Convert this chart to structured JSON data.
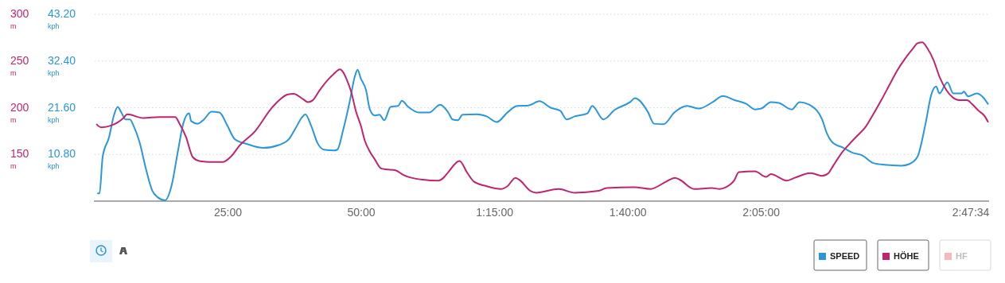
{
  "chart_data": {
    "type": "line",
    "ylabel": "kph",
    "y2label": "m",
    "xlim": [
      0,
      167.57
    ],
    "xticks": [
      {
        "value": 25,
        "label": "25:00"
      },
      {
        "value": 50,
        "label": "50:00"
      },
      {
        "value": 75,
        "label": "1:15:00"
      },
      {
        "value": 100,
        "label": "1:40:00"
      },
      {
        "value": 125,
        "label": "2:05:00"
      },
      {
        "value": 167.57,
        "label": "2:47:34"
      }
    ],
    "ylim": [
      0,
      43.2
    ],
    "yticks": [
      {
        "value": 10.8,
        "label": "10.80"
      },
      {
        "value": 21.6,
        "label": "21.60"
      },
      {
        "value": 32.4,
        "label": "32.40"
      },
      {
        "value": 43.2,
        "label": "43.20"
      }
    ],
    "y2lim": [
      100,
      300
    ],
    "y2ticks": [
      150,
      200,
      250,
      300
    ],
    "grid": "y",
    "legend": "bottom right",
    "line_style": "solid",
    "marker": "none",
    "series": [
      {
        "name": "SPEED",
        "color": "#2a96dc",
        "x": [
          0.6,
          0.9,
          1.5,
          2.7,
          3.6,
          4.3,
          5.0,
          5.8,
          6.6,
          7.3,
          8.4,
          9.6,
          10.8,
          11.8,
          13.2,
          14.4,
          15.6,
          16.6,
          17.7,
          18.1,
          19.3,
          20.5,
          21.9,
          23.4,
          24.9,
          26.3,
          28.6,
          31.6,
          34.6,
          36.4,
          37.6,
          38.9,
          39.5,
          40.6,
          41.8,
          43.0,
          44.8,
          45.5,
          46.6,
          47.8,
          48.8,
          49.3,
          49.9,
          50.9,
          51.6,
          52.5,
          53.4,
          54.3,
          55.5,
          56.9,
          57.6,
          58.8,
          60.8,
          62.7,
          64.8,
          66.3,
          67.1,
          68.1,
          69.0,
          71.7,
          73.5,
          75.4,
          77.4,
          79.2,
          81.3,
          83.4,
          85.5,
          87.3,
          88.5,
          90.0,
          92.4,
          93.3,
          95.4,
          97.5,
          100.4,
          101.3,
          103.7,
          104.9,
          106.7,
          108.7,
          111.1,
          113.3,
          115.9,
          117.8,
          119.9,
          122.2,
          123.8,
          125.0,
          126.8,
          128.3,
          130.7,
          132.2,
          134.3,
          136.4,
          137.3,
          138.5,
          140.3,
          142.1,
          143.9,
          146.0,
          148.1,
          151.3,
          152.8,
          154.3,
          155.8,
          156.9,
          157.8,
          158.4,
          159.9,
          161.0,
          162.6,
          163.0,
          163.8,
          165.4,
          166.6,
          167.5
        ],
        "values": [
          1.8,
          1.8,
          10.3,
          14.8,
          19.8,
          21.8,
          20.5,
          18.9,
          18.9,
          17.4,
          13.7,
          7.5,
          2.4,
          0.9,
          0.2,
          3.5,
          11.5,
          17.9,
          20.3,
          18.5,
          17.9,
          18.9,
          20.7,
          20.5,
          17.4,
          14.3,
          13.2,
          12.3,
          13.0,
          14.3,
          16.7,
          19.4,
          20.1,
          17.4,
          13.4,
          11.9,
          11.7,
          11.9,
          16.5,
          22.9,
          28.9,
          30.4,
          28.4,
          25.6,
          21.2,
          19.8,
          20.0,
          18.7,
          21.8,
          22.0,
          23.2,
          21.8,
          20.5,
          20.5,
          22.3,
          20.5,
          18.9,
          18.7,
          20.0,
          20.1,
          19.6,
          18.3,
          20.5,
          22.0,
          22.1,
          23.1,
          21.6,
          20.9,
          18.9,
          19.6,
          20.3,
          22.0,
          18.9,
          21.1,
          22.9,
          23.8,
          20.7,
          17.9,
          17.8,
          20.5,
          22.0,
          21.4,
          22.9,
          24.3,
          23.4,
          22.5,
          21.2,
          21.4,
          22.9,
          22.7,
          21.2,
          22.9,
          22.1,
          18.9,
          15.7,
          13.4,
          12.4,
          11.2,
          10.6,
          8.8,
          8.4,
          8.2,
          8.6,
          10.3,
          17.9,
          24.7,
          26.5,
          24.9,
          27.5,
          24.9,
          24.9,
          25.3,
          24.2,
          24.9,
          24.0,
          22.5
        ]
      },
      {
        "name": "HÖHE",
        "color": "#c0246f",
        "axis": "y2",
        "x": [
          0.4,
          1.2,
          3.1,
          5.4,
          6.1,
          9.1,
          12.1,
          15.1,
          15.9,
          17.1,
          18.4,
          19.6,
          21.4,
          24.1,
          25.6,
          27.1,
          30.1,
          33.1,
          34.6,
          36.1,
          37.3,
          39.1,
          40.0,
          40.9,
          42.1,
          43.6,
          44.8,
          46.0,
          46.6,
          47.2,
          48.1,
          49.0,
          49.9,
          50.7,
          51.6,
          52.5,
          53.7,
          54.6,
          56.4,
          57.9,
          59.4,
          61.5,
          64.5,
          65.4,
          66.3,
          68.4,
          69.9,
          71.1,
          73.5,
          76.2,
          77.4,
          78.9,
          79.8,
          81.7,
          82.8,
          87.0,
          90.0,
          94.5,
          96.0,
          101.2,
          104.2,
          107.2,
          108.8,
          109.7,
          112.4,
          115.7,
          117.2,
          118.4,
          119.9,
          120.8,
          123.8,
          125.9,
          126.8,
          129.8,
          131.3,
          134.3,
          136.4,
          137.6,
          138.5,
          140.0,
          141.5,
          143.0,
          144.5,
          146.0,
          147.5,
          149.0,
          150.4,
          151.9,
          153.4,
          154.3,
          155.2,
          156.1,
          157.3,
          158.5,
          159.7,
          160.9,
          162.1,
          163.6,
          164.5,
          165.7,
          166.9,
          167.5
        ],
        "values": [
          182,
          179,
          181,
          189,
          193,
          189,
          190,
          190,
          183,
          169,
          147,
          143,
          142,
          142,
          148,
          159,
          175,
          199,
          208,
          214,
          215,
          209,
          206,
          208,
          218,
          229,
          236,
          241,
          238,
          231,
          217,
          196,
          181,
          164,
          153,
          145,
          135,
          134,
          133,
          128,
          125,
          123,
          122,
          125,
          131,
          143,
          130,
          121,
          116,
          113,
          116,
          125,
          122,
          111,
          109,
          113,
          109,
          111,
          114,
          115,
          113,
          121,
          125,
          123,
          113,
          114,
          113,
          115,
          122,
          131,
          132,
          126,
          129,
          122,
          125,
          130,
          127,
          130,
          138,
          151,
          161,
          170,
          179,
          193,
          208,
          224,
          239,
          252,
          263,
          269,
          270,
          264,
          251,
          232,
          219,
          211,
          208,
          208,
          204,
          197,
          191,
          185
        ]
      },
      {
        "name": "HF",
        "color": "#e8808c"
      }
    ]
  }
}
